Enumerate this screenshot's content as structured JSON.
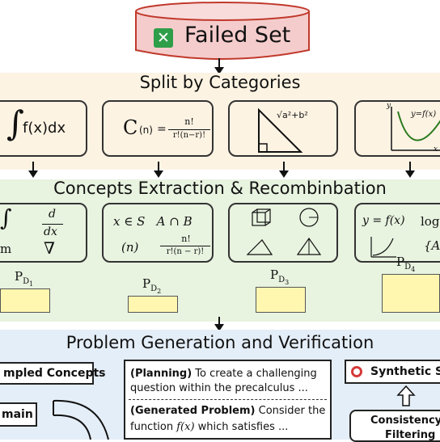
{
  "failed_set": {
    "label": "Failed Set",
    "check_icon": "check-mark-icon",
    "cylinder_color": "#f5cccc"
  },
  "split": {
    "title": "Split by Categories"
  },
  "categories": [
    {
      "name": "integral",
      "formula": "f(x)dx"
    },
    {
      "name": "combination",
      "formula_c": "C",
      "formula_n": "(n)",
      "formula_eq": "=",
      "numerator": "n!",
      "denominator": "r!(n−r)!"
    },
    {
      "name": "geometry",
      "hyp_label": "√a²+b²"
    },
    {
      "name": "function-graph",
      "curve_label": "y=f(x)",
      "x_label": "x",
      "y_label": "y"
    }
  ],
  "concepts": {
    "title": "Concepts Extraction & Recombinbation",
    "card1": {
      "d": "d",
      "dx": "dx",
      "m": "m",
      "nabla": "∇"
    },
    "card2": {
      "line1": "x ∈ S   A ∩ B",
      "n": "(n)",
      "num": "n!",
      "den": "r!(n − r)!"
    },
    "card4": {
      "line1": "y = f(x)",
      "log": "log",
      "brace": "{A"
    }
  },
  "distribution": [
    {
      "label": "P",
      "sub": "D",
      "subsub": "1",
      "value": 0.28
    },
    {
      "label": "P",
      "sub": "D",
      "subsub": "2",
      "value": 0.2
    },
    {
      "label": "P",
      "sub": "D",
      "subsub": "3",
      "value": 0.3
    },
    {
      "label": "P",
      "sub": "D",
      "subsub": "4",
      "value": 0.45
    }
  ],
  "generation": {
    "title": "Problem Generation and Verification",
    "sampled_concepts": "mpled Concepts",
    "domain": "main",
    "planning_label": "(Planning)",
    "planning_text1": " To create a challenging",
    "planning_text2": "question within the precalculus ...",
    "generated_label": "(Generated Problem)",
    "generated_text1": " Consider the",
    "generated_text2a": "function ",
    "generated_fx": "f(x)",
    "generated_text2b": " which satisfies ...",
    "synthetic": "Synthetic S",
    "consistency": "Consistency",
    "filtering": "Filtering"
  }
}
